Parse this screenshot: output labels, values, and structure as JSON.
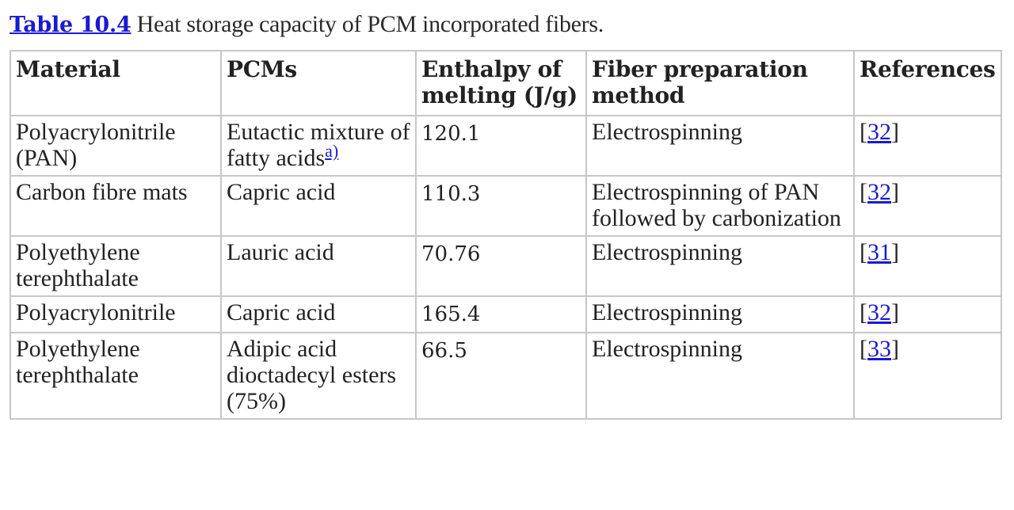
{
  "caption": {
    "label": "Table 10.4",
    "text": " Heat storage capacity of PCM incorporated fibers."
  },
  "table": {
    "headers": [
      "Material",
      "PCMs",
      "Enthalpy of melting (J/g)",
      "Fiber preparation method",
      "References"
    ],
    "rows": [
      {
        "material": "Polyacrylonitrile (PAN)",
        "pcm": "Eutactic mixture of fatty acids",
        "footnote": "a)",
        "enthalpy": "120.1",
        "method": "Electrospinning",
        "ref": "32"
      },
      {
        "material": "Carbon fibre mats",
        "pcm": "Capric acid",
        "footnote": "",
        "enthalpy": "110.3",
        "method": "Electrospinning of PAN followed by carbonization",
        "ref": "32"
      },
      {
        "material": "Polyethylene terephthalate",
        "pcm": "Lauric acid",
        "footnote": "",
        "enthalpy": "70.76",
        "method": "Electrospinning",
        "ref": "31"
      },
      {
        "material": "Polyacrylonitrile",
        "pcm": "Capric acid",
        "footnote": "",
        "enthalpy": "165.4",
        "method": "Electrospinning",
        "ref": "32"
      },
      {
        "material": "Polyethylene terephthalate",
        "pcm": "Adipic acid dioctadecyl esters (75%)",
        "footnote": "",
        "enthalpy": "66.5",
        "method": "Electrospinning",
        "ref": "33"
      }
    ]
  }
}
